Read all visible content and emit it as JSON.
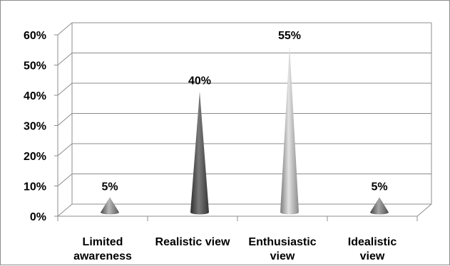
{
  "chart_data": {
    "type": "bar",
    "shape": "cone",
    "categories": [
      [
        "Limited",
        "awareness"
      ],
      [
        "Realistic view"
      ],
      [
        "Enthusiastic",
        "view"
      ],
      [
        "Idealistic",
        "view"
      ]
    ],
    "values": [
      5,
      40,
      55,
      5
    ],
    "data_labels": [
      "5%",
      "40%",
      "55%",
      "5%"
    ],
    "y_ticks": [
      "0%",
      "10%",
      "20%",
      "30%",
      "40%",
      "50%",
      "60%"
    ],
    "ylim": [
      0,
      60
    ],
    "grid": true,
    "legend": "none",
    "title": "",
    "xlabel": "",
    "ylabel": "",
    "colors": [
      "#8a8a8a",
      "#555555",
      "#a8a8a8",
      "#808080"
    ]
  }
}
